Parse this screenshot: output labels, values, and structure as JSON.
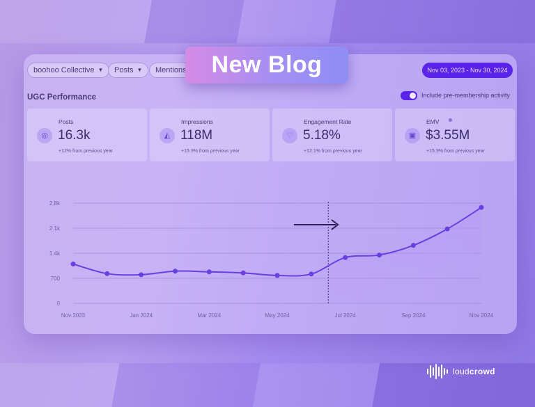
{
  "filters": {
    "brand": "boohoo Collective",
    "content_type": "Posts",
    "source": "Mentions",
    "date_range": "Nov 03, 2023 - Nov 30, 2024"
  },
  "section_title": "UGC Performance",
  "include_toggle": {
    "label": "Include pre-membership activity",
    "on": true
  },
  "metrics": [
    {
      "label": "Posts",
      "value": "16.3k",
      "change": "+12% from previous year",
      "icon": "instagram-icon"
    },
    {
      "label": "Impressions",
      "value": "118M",
      "change": "+15.3% from previous year",
      "icon": "megaphone-icon"
    },
    {
      "label": "Engagement Rate",
      "value": "5.18%",
      "change": "+12.1% from previous year",
      "icon": "heart-icon"
    },
    {
      "label": "EMV",
      "value": "$3.55M",
      "change": "+15.3% from previous year",
      "icon": "wallet-icon"
    }
  ],
  "chart_data": {
    "type": "line",
    "x": [
      "Nov 2023",
      "Dec 2023",
      "Jan 2024",
      "Feb 2024",
      "Mar 2024",
      "Apr 2024",
      "May 2024",
      "Jun 2024",
      "Jul 2024",
      "Aug 2024",
      "Sep 2024",
      "Oct 2024",
      "Nov 2024"
    ],
    "x_tick_labels": [
      "Nov 2023",
      "Jan 2024",
      "Mar 2024",
      "May 2024",
      "Jul 2024",
      "Sep 2024",
      "Nov 2024"
    ],
    "y_tick_labels": [
      "0",
      "700",
      "1.4k",
      "2.1k",
      "2.8k"
    ],
    "series": [
      {
        "values": [
          1100,
          830,
          800,
          900,
          880,
          850,
          780,
          820,
          1280,
          1350,
          1620,
          2080,
          2680
        ]
      }
    ],
    "ylim": [
      0,
      2800
    ],
    "grid": true,
    "marker_after": "Jun 2024",
    "colors": {
      "line": "#6a3fe0",
      "fill": "#b89cf5"
    }
  },
  "overlay": {
    "title": "New Blog"
  },
  "brand": {
    "name_light": "loud",
    "name_bold": "crowd"
  },
  "colors": {
    "accent": "#5b22ea",
    "text": "#4a3a7a"
  }
}
